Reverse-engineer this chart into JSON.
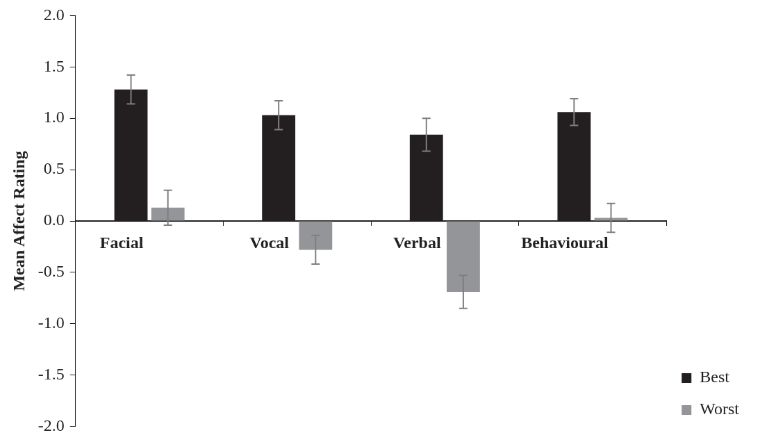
{
  "chart_data": {
    "type": "bar",
    "ylabel": "Mean Affect Rating",
    "categories": [
      "Facial",
      "Vocal",
      "Verbal",
      "Behavioural"
    ],
    "series": [
      {
        "name": "Best",
        "color": "#231f20",
        "values": [
          1.28,
          1.03,
          0.84,
          1.06
        ],
        "errors": [
          0.14,
          0.14,
          0.16,
          0.13
        ]
      },
      {
        "name": "Worst",
        "color": "#939598",
        "values": [
          0.13,
          -0.28,
          -0.69,
          0.03
        ],
        "errors": [
          0.17,
          0.14,
          0.16,
          0.14
        ]
      }
    ],
    "ylim": [
      -2,
      2
    ],
    "yticks": [
      {
        "value": -2,
        "label": "-2.0"
      },
      {
        "value": -1.5,
        "label": "-1.5"
      },
      {
        "value": -1,
        "label": "-1.0"
      },
      {
        "value": -0.5,
        "label": "-0.5"
      },
      {
        "value": 0,
        "label": "0.0"
      },
      {
        "value": 0.5,
        "label": "0.5"
      },
      {
        "value": 1,
        "label": "1.0"
      },
      {
        "value": 1.5,
        "label": "1.5"
      },
      {
        "value": 2,
        "label": "2.0"
      }
    ],
    "grid": false,
    "legend": "bottom right"
  }
}
